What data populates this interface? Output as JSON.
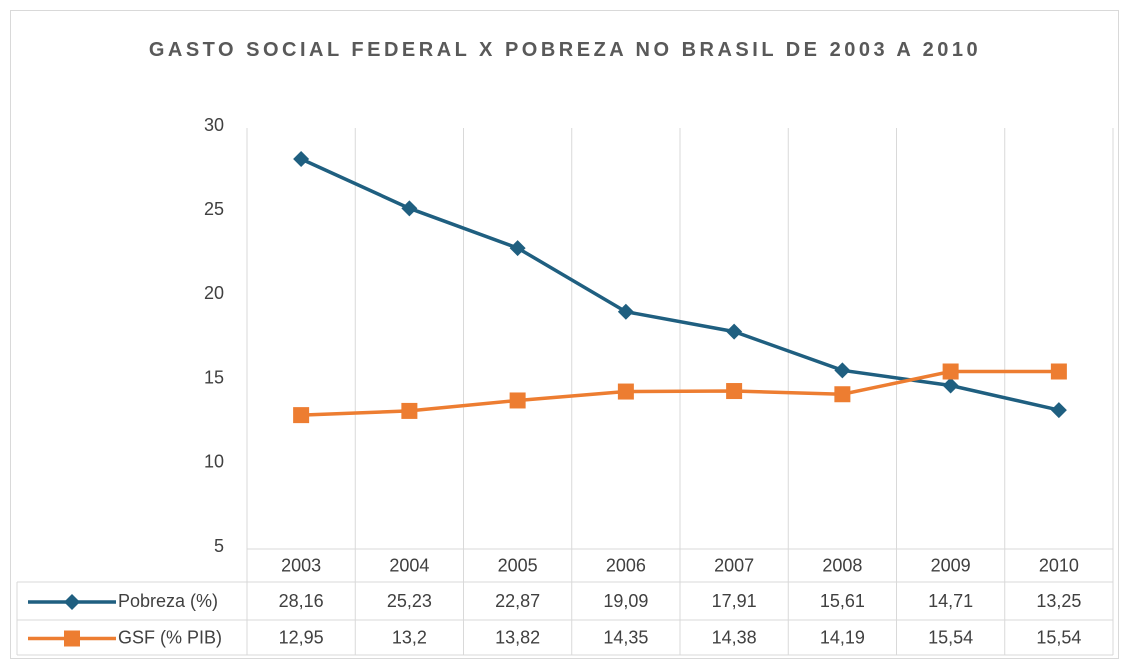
{
  "chart_data": {
    "type": "line",
    "title": "GASTO SOCIAL FEDERAL X POBREZA NO BRASIL DE 2003 A 2010",
    "categories": [
      "2003",
      "2004",
      "2005",
      "2006",
      "2007",
      "2008",
      "2009",
      "2010"
    ],
    "series": [
      {
        "name": "Pobreza (%)",
        "color": "#1f5f80",
        "marker": "diamond",
        "values": [
          28.16,
          25.23,
          22.87,
          19.09,
          17.91,
          15.61,
          14.71,
          13.25
        ],
        "value_labels": [
          "28,16",
          "25,23",
          "22,87",
          "19,09",
          "17,91",
          "15,61",
          "14,71",
          "13,25"
        ]
      },
      {
        "name": "GSF (% PIB)",
        "color": "#ed7d31",
        "marker": "square",
        "values": [
          12.95,
          13.2,
          13.82,
          14.35,
          14.38,
          14.19,
          15.54,
          15.54
        ],
        "value_labels": [
          "12,95",
          "13,2",
          "13,82",
          "14,35",
          "14,38",
          "14,19",
          "15,54",
          "15,54"
        ]
      }
    ],
    "ylim": [
      5,
      30
    ],
    "yticks": [
      5,
      10,
      15,
      20,
      25,
      30
    ],
    "grid": false,
    "data_table": true
  }
}
